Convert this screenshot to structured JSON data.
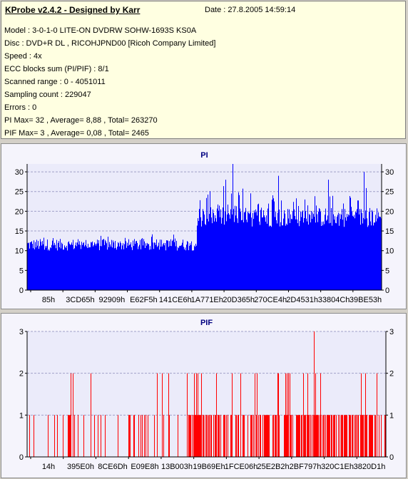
{
  "info": {
    "title": "KProbe v2.4.2 - Designed by Karr",
    "date": "Date : 27.8.2005 14:59:14",
    "lines": [
      "Model : 3-0-1-0 LITE-ON DVDRW SOHW-1693S KS0A",
      "Disc : DVD+R DL , RICOHJPND00 [Ricoh Company Limited]",
      "Speed : 4x",
      "ECC blocks sum (PI/PIF) : 8/1",
      "Scanned range : 0 - 4051011",
      "Sampling count : 229047",
      "Errors : 0",
      "PI Max= 32 , Average= 8,88 , Total= 263270",
      "PIF Max= 3 , Average= 0,08 , Total= 2465"
    ]
  },
  "colors": {
    "pi": "#0000ff",
    "pif": "#ff0000",
    "grid": "#a0a0c8",
    "plot_bg": "#ebebfa"
  },
  "chart_data": [
    {
      "type": "bar",
      "title": "PI",
      "ylim": [
        0,
        32
      ],
      "yticks": [
        0,
        5,
        10,
        15,
        20,
        25,
        30
      ],
      "xtick_labels": [
        "85h",
        "3CD65h",
        "92909h",
        "E62F5h",
        "141CE6h",
        "1A771Eh",
        "20D365h",
        "270CE4h",
        "2D4531h",
        "33804Ch",
        "39BE53h"
      ],
      "grid": true,
      "series": [
        {
          "segments": [
            {
              "position": "0-48%",
              "baseline": 10,
              "peaks": 14,
              "max_spike": 16
            },
            {
              "position": "48-100%",
              "baseline": 17,
              "peaks": 25,
              "max_spike": 32
            }
          ]
        }
      ]
    },
    {
      "type": "bar",
      "title": "PIF",
      "ylim": [
        0,
        3
      ],
      "yticks": [
        0,
        1,
        2,
        3
      ],
      "xtick_labels": [
        "14h",
        "395E0h",
        "8CE6Dh",
        "E09E8h",
        "13B003h",
        "19B69Eh",
        "1FCE06h",
        "25E2B2h",
        "2BF797h",
        "320C1Eh",
        "3820D1h"
      ],
      "grid": true,
      "series": [
        {
          "segments": [
            {
              "position": "0-45%",
              "values": [
                0,
                1,
                2
              ],
              "density": "sparse"
            },
            {
              "position": "45-100%",
              "values": [
                0,
                1,
                2
              ],
              "density": "dense"
            }
          ],
          "max_spike": 3
        }
      ]
    }
  ]
}
